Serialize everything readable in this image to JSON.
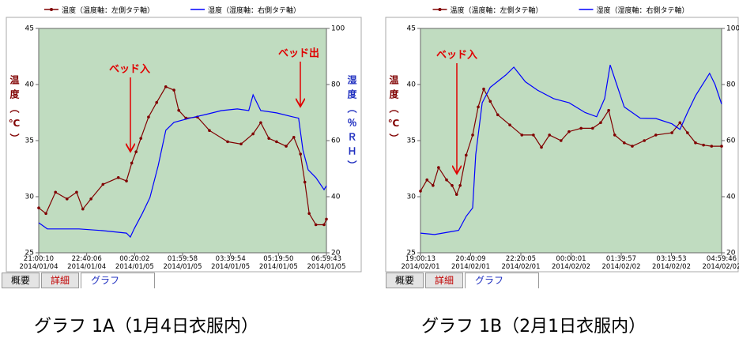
{
  "chart_data": [
    {
      "type": "line",
      "caption": "グラフ 1A（1月4日衣服内）",
      "tabs": [
        "概要",
        "詳細",
        "グラフ"
      ],
      "ylabel": "温度（℃）",
      "y2label": "湿度（％ＲＨ）",
      "annotations": [
        "ベッド入",
        "ベッド出"
      ],
      "background": "#c0dcc0",
      "xlim": [
        0,
        600
      ],
      "xticks": [
        {
          "value": 0,
          "label": "21:00:10\n2014/01/04"
        },
        {
          "value": 100,
          "label": "22:40:06\n2014/01/04"
        },
        {
          "value": 200,
          "label": "00:20:02\n2014/01/05"
        },
        {
          "value": 300,
          "label": "01:59:58\n2014/01/05"
        },
        {
          "value": 400,
          "label": "03:39:54\n2014/01/05"
        },
        {
          "value": 500,
          "label": "05:19:50\n2014/01/05"
        },
        {
          "value": 600,
          "label": "06:59:43\n2014/01/05"
        }
      ],
      "ylim": [
        25,
        45
      ],
      "yticks": [
        25,
        30,
        35,
        40,
        45
      ],
      "y2lim": [
        20,
        100
      ],
      "y2ticks": [
        20,
        40,
        60,
        80,
        100
      ],
      "series": [
        {
          "name": "温度（温度軸：左側タテ軸）",
          "color": "#800000",
          "axis": "y",
          "markers": true,
          "x": [
            0,
            15,
            35,
            59,
            79,
            92,
            109,
            134,
            166,
            183,
            194,
            203,
            213,
            229,
            246,
            265,
            282,
            292,
            307,
            331,
            356,
            394,
            422,
            447,
            463,
            480,
            496,
            516,
            532,
            546,
            555,
            564,
            578,
            595,
            600
          ],
          "values": [
            29.0,
            28.5,
            30.4,
            29.8,
            30.4,
            28.9,
            29.8,
            31.1,
            31.7,
            31.4,
            33.0,
            34.0,
            35.2,
            37.1,
            38.4,
            39.8,
            39.5,
            37.7,
            37.0,
            37.1,
            35.9,
            34.9,
            34.7,
            35.6,
            36.6,
            35.2,
            34.9,
            34.5,
            35.3,
            33.8,
            31.3,
            28.5,
            27.5,
            27.5,
            28.0
          ]
        },
        {
          "name": "湿度（湿度軸：右側タテ軸）",
          "color": "#0000ff",
          "axis": "y2",
          "markers": false,
          "x": [
            0,
            18,
            84,
            134,
            183,
            191,
            199,
            216,
            232,
            249,
            265,
            282,
            315,
            348,
            381,
            414,
            438,
            447,
            463,
            496,
            529,
            542,
            551,
            562,
            578,
            595,
            600
          ],
          "values": [
            30.7,
            28.5,
            28.5,
            27.9,
            27.0,
            25.6,
            28.5,
            34.0,
            39.7,
            51.0,
            63.7,
            66.5,
            68.0,
            69.3,
            70.7,
            71.3,
            70.7,
            76.3,
            70.7,
            69.9,
            68.5,
            68.0,
            56.6,
            49.6,
            46.8,
            42.5,
            43.9
          ]
        }
      ]
    },
    {
      "type": "line",
      "caption": "グラフ 1B（2月1日衣服内）",
      "tabs": [
        "概要",
        "詳細",
        "グラフ"
      ],
      "ylabel": "温度（℃）",
      "y2label": "湿度（％ＲＨ）",
      "annotations": [
        "ベッド入"
      ],
      "background": "#c0dcc0",
      "xlim": [
        0,
        600
      ],
      "xticks": [
        {
          "value": 0,
          "label": "19:00:13\n2014/02/01"
        },
        {
          "value": 100,
          "label": "20:40:09\n2014/02/01"
        },
        {
          "value": 200,
          "label": "22:20:05\n2014/02/01"
        },
        {
          "value": 300,
          "label": "00:00:01\n2014/02/02"
        },
        {
          "value": 400,
          "label": "01:39:57\n2014/02/02"
        },
        {
          "value": 500,
          "label": "03:19:53\n2014/02/02"
        },
        {
          "value": 600,
          "label": "04:59:46\n2014/02/02"
        }
      ],
      "ylim": [
        25,
        45
      ],
      "yticks": [
        25,
        30,
        35,
        40,
        45
      ],
      "y2lim": [
        20,
        100
      ],
      "y2ticks": [
        20,
        40,
        60,
        80,
        100
      ],
      "series": [
        {
          "name": "温度（温度軸：左側タテ軸）",
          "color": "#800000",
          "axis": "y",
          "markers": true,
          "x": [
            0,
            13,
            25,
            36,
            52,
            63,
            72,
            79,
            91,
            104,
            115,
            126,
            139,
            154,
            178,
            202,
            225,
            241,
            257,
            280,
            296,
            320,
            343,
            359,
            375,
            387,
            406,
            422,
            446,
            469,
            501,
            517,
            532,
            548,
            564,
            580,
            600
          ],
          "values": [
            30.5,
            31.5,
            31.0,
            32.6,
            31.5,
            31.0,
            30.2,
            31.0,
            33.7,
            35.5,
            38.0,
            39.6,
            38.5,
            37.3,
            36.4,
            35.5,
            35.5,
            34.4,
            35.5,
            35.0,
            35.8,
            36.1,
            36.1,
            36.6,
            37.7,
            35.5,
            34.8,
            34.5,
            35.0,
            35.5,
            35.7,
            36.6,
            35.7,
            34.8,
            34.6,
            34.5,
            34.5
          ]
        },
        {
          "name": "湿度（湿度軸：右側タテ軸）",
          "color": "#0000ff",
          "axis": "y2",
          "markers": false,
          "x": [
            0,
            28,
            60,
            76,
            91,
            104,
            110,
            123,
            139,
            170,
            186,
            209,
            233,
            265,
            296,
            328,
            351,
            367,
            378,
            391,
            406,
            438,
            469,
            501,
            517,
            532,
            548,
            576,
            587,
            600
          ],
          "values": [
            27.0,
            26.5,
            27.5,
            28.0,
            33.0,
            36.0,
            55.0,
            73.5,
            79.0,
            83.4,
            86.2,
            81.0,
            78.0,
            75.0,
            73.5,
            70.0,
            68.5,
            75.0,
            87.0,
            80.0,
            72.0,
            68.0,
            67.9,
            66.0,
            64.0,
            70.0,
            76.0,
            84.0,
            80.0,
            73.0
          ]
        }
      ]
    }
  ]
}
